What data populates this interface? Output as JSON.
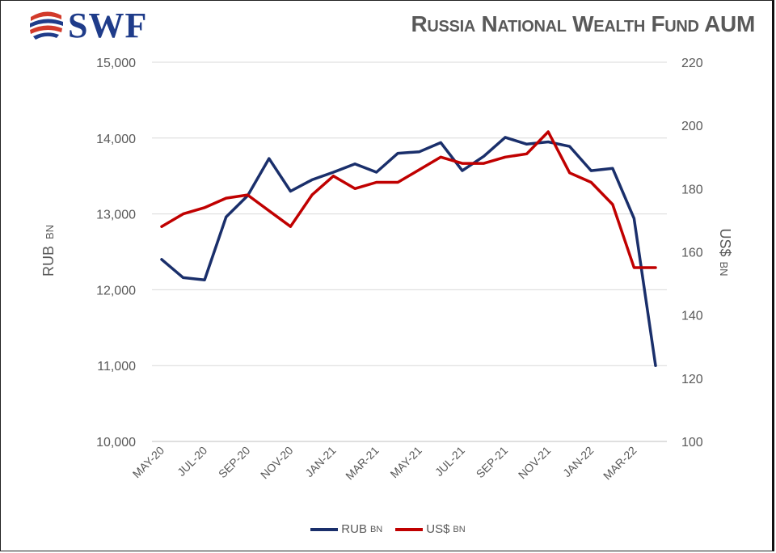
{
  "header": {
    "logo_text": "SWF",
    "title": "Russia National Wealth Fund AUM"
  },
  "chart_data": {
    "type": "line",
    "title": "Russia National Wealth Fund AUM",
    "categories": [
      "May-20",
      "Jun-20",
      "Jul-20",
      "Aug-20",
      "Sep-20",
      "Oct-20",
      "Nov-20",
      "Dec-20",
      "Jan-21",
      "Feb-21",
      "Mar-21",
      "Apr-21",
      "May-21",
      "Jun-21",
      "Jul-21",
      "Aug-21",
      "Sep-21",
      "Oct-21",
      "Nov-21",
      "Dec-21",
      "Jan-22",
      "Feb-22",
      "Mar-22",
      "Apr-22"
    ],
    "x_tick_labels": [
      "MAY-20",
      "JUL-20",
      "SEP-20",
      "NOV-20",
      "JAN-21",
      "MAR-21",
      "MAY-21",
      "JUL-21",
      "SEP-21",
      "NOV-21",
      "JAN-22",
      "MAR-22"
    ],
    "y_left": {
      "label_main": "RUB",
      "label_unit": "BN",
      "ylim": [
        10000,
        15000
      ],
      "ticks": [
        "10,000",
        "11,000",
        "12,000",
        "13,000",
        "14,000",
        "15,000"
      ]
    },
    "y_right": {
      "label_main": "US$",
      "label_unit": "BN",
      "ylim": [
        100,
        220
      ],
      "ticks": [
        "100",
        "120",
        "140",
        "160",
        "180",
        "200",
        "220"
      ]
    },
    "series": [
      {
        "name": "RUB",
        "name_unit": "BN",
        "axis": "left",
        "color": "#1a2f6b",
        "values": [
          12400,
          12160,
          12130,
          12960,
          13240,
          13730,
          13300,
          13450,
          13550,
          13660,
          13550,
          13800,
          13820,
          13940,
          13570,
          13760,
          14010,
          13920,
          13950,
          13890,
          13570,
          13600,
          12940,
          11000
        ]
      },
      {
        "name": "US$",
        "name_unit": "BN",
        "axis": "right",
        "color": "#c00000",
        "values": [
          168,
          172,
          174,
          177,
          178,
          173,
          168,
          178,
          184,
          180,
          182,
          182,
          186,
          190,
          188,
          188,
          190,
          191,
          198,
          185,
          182,
          175,
          155,
          155
        ]
      }
    ],
    "grid": true,
    "legend_position": "bottom"
  }
}
